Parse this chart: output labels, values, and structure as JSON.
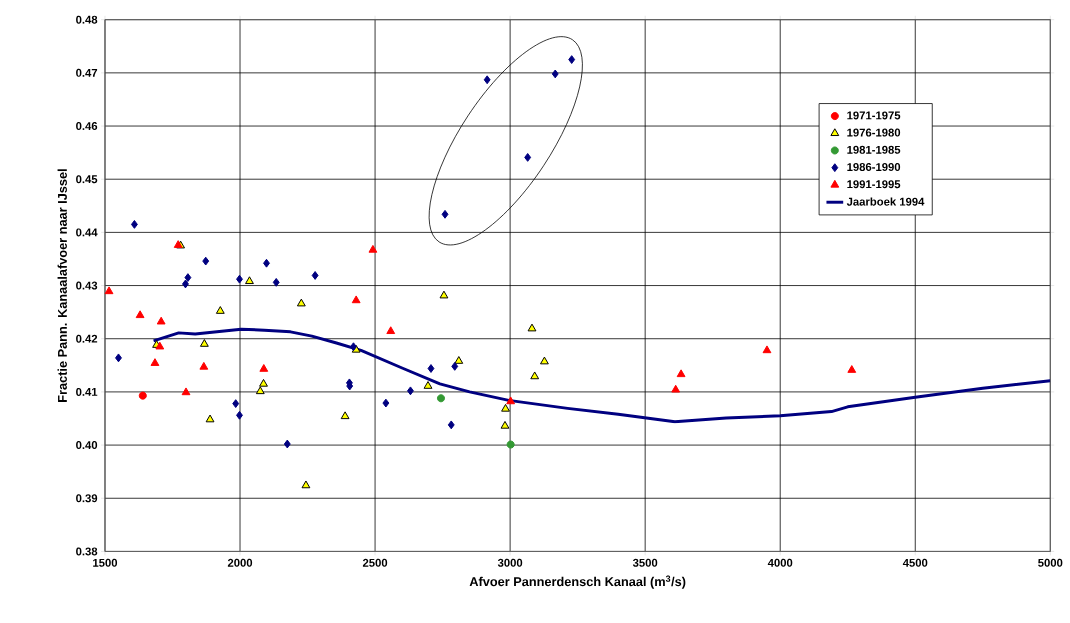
{
  "chart_data": {
    "type": "scatter",
    "xlabel": "Afvoer Pannerdensch Kanaal (m$^{3}$/s)",
    "ylabel": "Fractie Pann. Kanaalafvoer naar IJssel",
    "xlim": [
      1500,
      5000
    ],
    "ylim": [
      0.38,
      0.48
    ],
    "xticks": [
      1500,
      2000,
      2500,
      3000,
      3500,
      4000,
      4500,
      5000
    ],
    "yticks": [
      {
        "value": 0.38,
        "label": "0.38"
      },
      {
        "value": 0.39,
        "label": "0.39"
      },
      {
        "value": 0.4,
        "label": "0.40"
      },
      {
        "value": 0.41,
        "label": "0.41"
      },
      {
        "value": 0.42,
        "label": "0.42"
      },
      {
        "value": 0.43,
        "label": "0.43"
      },
      {
        "value": 0.44,
        "label": "0.44"
      },
      {
        "value": 0.45,
        "label": "0.45"
      },
      {
        "value": 0.46,
        "label": "0.46"
      },
      {
        "value": 0.47,
        "label": "0.47"
      },
      {
        "value": 0.48,
        "label": "0.48"
      }
    ],
    "grid": true,
    "legend": "top right",
    "series": [
      {
        "name": "1971-1975",
        "color": "#ff0000",
        "marker": "circle",
        "x": [
          1640
        ],
        "values": [
          0.4093
        ]
      },
      {
        "name": "1976-1980",
        "color": "#ffff00",
        "marker": "triangle",
        "x": [
          1780,
          2035,
          2227,
          1927,
          1691,
          1868,
          2087,
          2075,
          1889,
          2244,
          2430,
          2755,
          3081,
          2810,
          3127,
          3091,
          2696,
          2983,
          2389,
          2981
        ],
        "values": [
          0.4375,
          0.4308,
          0.4266,
          0.4252,
          0.4188,
          0.419,
          0.4115,
          0.4101,
          0.4048,
          0.3924,
          0.4179,
          0.4281,
          0.4219,
          0.4158,
          0.4157,
          0.4129,
          0.4111,
          0.4068,
          0.4054,
          0.4036
        ]
      },
      {
        "name": "1981-1985",
        "color": "#339933",
        "marker": "circle",
        "x": [
          2744,
          3002
        ],
        "values": [
          0.4088,
          0.4001
        ]
      },
      {
        "name": "1986-1990",
        "color": "#000080",
        "marker": "diamond",
        "x": [
          1609,
          1873,
          1807,
          1798,
          1998,
          2098,
          2134,
          2278,
          1550,
          1984,
          1998,
          2175,
          2420,
          2795,
          2707,
          2405,
          2406,
          2631,
          2540,
          2782,
          2915,
          3167,
          3228,
          3065,
          2759
        ],
        "values": [
          0.4415,
          0.4346,
          0.4315,
          0.4303,
          0.4312,
          0.4342,
          0.4306,
          0.4319,
          0.4164,
          0.4078,
          0.4056,
          0.4002,
          0.4185,
          0.4148,
          0.4144,
          0.4117,
          0.4111,
          0.4102,
          0.4079,
          0.4038,
          0.4687,
          0.4698,
          0.4725,
          0.4541,
          0.4434
        ]
      },
      {
        "name": "1991-1995",
        "color": "#ff0000",
        "marker": "triangle",
        "x": [
          1771,
          1515,
          1630,
          1708,
          1703,
          1685,
          1866,
          2088,
          1800,
          2492,
          2430,
          2558,
          3002,
          3633,
          3613,
          3951,
          4265
        ],
        "values": [
          0.4376,
          0.4289,
          0.4244,
          0.4232,
          0.4185,
          0.4154,
          0.4147,
          0.4143,
          0.4099,
          0.4367,
          0.4272,
          0.4214,
          0.4082,
          0.4133,
          0.4104,
          0.4178,
          0.4141
        ]
      },
      {
        "name": "Jaarboek 1994",
        "type": "line",
        "color": "#000080",
        "marker": "none",
        "x": [
          1680,
          1773,
          1834,
          2004,
          2090,
          2187,
          2266,
          2357,
          2448,
          2600,
          2740,
          2850,
          2995,
          3213,
          3400,
          3610,
          3800,
          4000,
          4190,
          4250,
          4500,
          4750,
          5000
        ],
        "values": [
          0.4196,
          0.4211,
          0.4209,
          0.4218,
          0.4216,
          0.4213,
          0.4205,
          0.4192,
          0.4178,
          0.4145,
          0.4115,
          0.41,
          0.4084,
          0.4069,
          0.4058,
          0.4044,
          0.4051,
          0.4055,
          0.4063,
          0.4072,
          0.409,
          0.4107,
          0.4121
        ]
      }
    ]
  }
}
